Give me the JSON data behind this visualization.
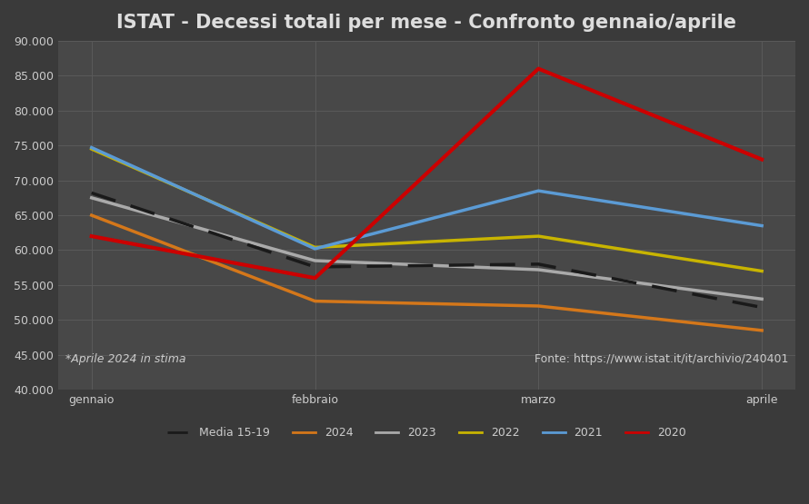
{
  "title": "ISTAT - Decessi totali per mese - Confronto gennaio/aprile",
  "months": [
    "gennaio",
    "febbraio",
    "marzo",
    "aprile"
  ],
  "series": {
    "Media 15-19": {
      "values": [
        68200,
        57600,
        58000,
        51800
      ],
      "color": "#1a1a1a",
      "linewidth": 2.5,
      "zorder": 5,
      "dashed": true
    },
    "2024": {
      "values": [
        65000,
        52700,
        52000,
        48500
      ],
      "color": "#d4771a",
      "linewidth": 2.5,
      "zorder": 4,
      "dashed": false
    },
    "2023": {
      "values": [
        67500,
        58500,
        57200,
        53000
      ],
      "color": "#aaaaaa",
      "linewidth": 2.5,
      "zorder": 3,
      "dashed": false
    },
    "2022": {
      "values": [
        74500,
        60400,
        62000,
        57000
      ],
      "color": "#c8b400",
      "linewidth": 2.5,
      "zorder": 3,
      "dashed": false
    },
    "2021": {
      "values": [
        74700,
        60200,
        68500,
        63500
      ],
      "color": "#5b9bd5",
      "linewidth": 2.5,
      "zorder": 3,
      "dashed": false
    },
    "2020": {
      "values": [
        62000,
        56000,
        86000,
        73000
      ],
      "color": "#cc0000",
      "linewidth": 3.0,
      "zorder": 6,
      "dashed": false
    }
  },
  "legend_order": [
    "Media 15-19",
    "2024",
    "2023",
    "2022",
    "2021",
    "2020"
  ],
  "ylim": [
    40000,
    90000
  ],
  "yticks": [
    40000,
    45000,
    50000,
    55000,
    60000,
    65000,
    70000,
    75000,
    80000,
    85000,
    90000
  ],
  "fig_bg_color": "#3a3a3a",
  "plot_bg_color": "#484848",
  "grid_color": "#5a5a5a",
  "text_color": "#cccccc",
  "title_color": "#dddddd",
  "title_fontsize": 15,
  "tick_fontsize": 9,
  "annotation_left": "*Aprile 2024 in stima",
  "annotation_right": "Fonte: https://www.istat.it/it/archivio/240401",
  "annotation_fontsize": 9
}
